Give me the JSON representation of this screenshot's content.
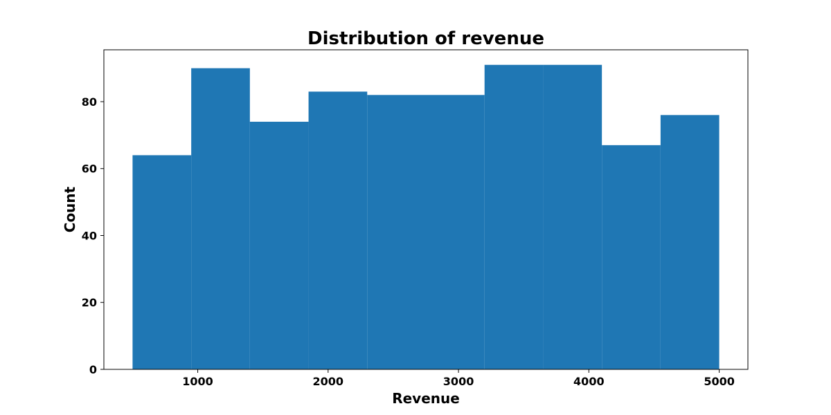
{
  "chart_data": {
    "type": "bar",
    "title": "Distribution of revenue",
    "xlabel": "Revenue",
    "ylabel": "Count",
    "bin_edges": [
      500,
      950,
      1400,
      1850,
      2300,
      2750,
      3200,
      3650,
      4100,
      4550,
      5000
    ],
    "values": [
      64,
      90,
      74,
      83,
      82,
      82,
      91,
      91,
      67,
      76
    ],
    "xlim": [
      280,
      5220
    ],
    "ylim": [
      0,
      95.5
    ],
    "xticks": [
      1000,
      2000,
      3000,
      4000,
      5000
    ],
    "yticks": [
      0,
      20,
      40,
      60,
      80
    ],
    "bar_color": "#1f77b4",
    "grid": false,
    "legend": false
  }
}
